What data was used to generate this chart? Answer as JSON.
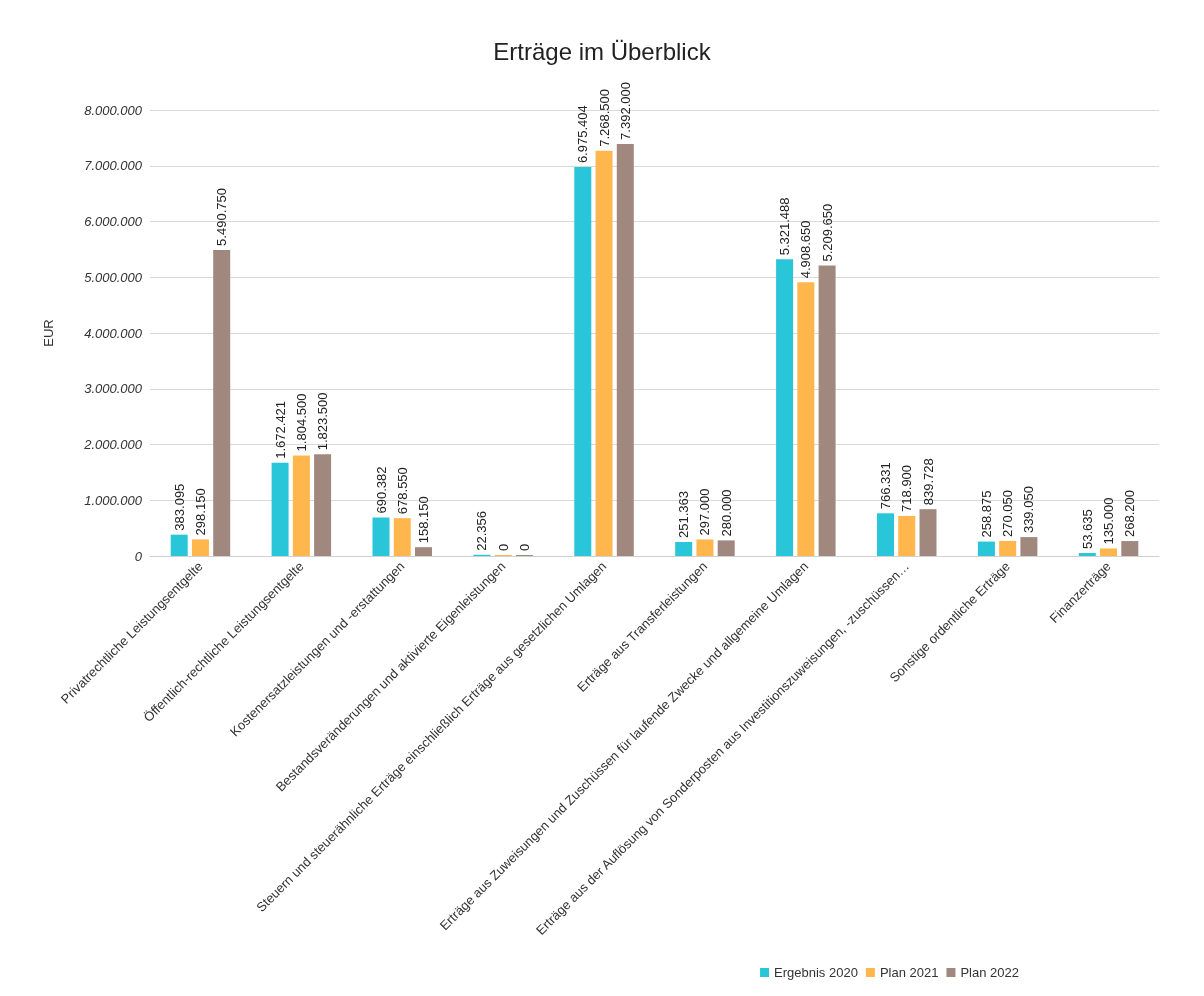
{
  "chart_data": {
    "type": "bar",
    "title": "Erträge im Überblick",
    "ylabel": "EUR",
    "categories": [
      "Privatrechtliche Leistungsentgelte",
      "Öffentlich-rechtliche Leistungsentgelte",
      "Kostenersatzleistungen und -erstattungen",
      "Bestandsveränderungen und aktivierte Eigenleistungen",
      "Steuern und steuerähnliche Erträge einschließlich Erträge aus gesetzlichen Umlagen",
      "Erträge aus Transferleistungen",
      "Erträge aus Zuweisungen und Zuschüssen für laufende Zwecke und allgemeine Umlagen",
      "Erträge aus der Auflösung von Sonderposten aus Investitionszuweisungen, -zuschüssen…",
      "Sonstige ordentliche Erträge",
      "Finanzerträge"
    ],
    "series": [
      {
        "name": "Ergebnis 2020",
        "color": "#29c5d8",
        "values": [
          383095,
          1672421,
          690382,
          22356,
          6975404,
          251363,
          5321488,
          766331,
          258875,
          53635
        ],
        "value_labels": [
          "383.095",
          "1.672.421",
          "690.382",
          "22.356",
          "6.975.404",
          "251.363",
          "5.321.488",
          "766.331",
          "258.875",
          "53.635"
        ]
      },
      {
        "name": "Plan 2021",
        "color": "#ffb74d",
        "values": [
          298150,
          1804500,
          678550,
          0,
          7268500,
          297000,
          4908650,
          718900,
          270050,
          135000
        ],
        "value_labels": [
          "298.150",
          "1.804.500",
          "678.550",
          "0",
          "7.268.500",
          "297.000",
          "4.908.650",
          "718.900",
          "270.050",
          "135.000"
        ]
      },
      {
        "name": "Plan 2022",
        "color": "#a1887f",
        "values": [
          5490750,
          1823500,
          158150,
          0,
          7392000,
          280000,
          5209650,
          839728,
          339050,
          268200
        ],
        "value_labels": [
          "5.490.750",
          "1.823.500",
          "158.150",
          "0",
          "7.392.000",
          "280.000",
          "5.209.650",
          "839.728",
          "339.050",
          "268.200"
        ]
      }
    ],
    "ylim": [
      0,
      8000000
    ],
    "yticks": [
      {
        "value": 0,
        "label": "0"
      },
      {
        "value": 1000000,
        "label": "1.000.000"
      },
      {
        "value": 2000000,
        "label": "2.000.000"
      },
      {
        "value": 3000000,
        "label": "3.000.000"
      },
      {
        "value": 4000000,
        "label": "4.000.000"
      },
      {
        "value": 5000000,
        "label": "5.000.000"
      },
      {
        "value": 6000000,
        "label": "6.000.000"
      },
      {
        "value": 7000000,
        "label": "7.000.000"
      },
      {
        "value": 8000000,
        "label": "8.000.000"
      }
    ],
    "grid": "y",
    "legend": "bottom right"
  }
}
